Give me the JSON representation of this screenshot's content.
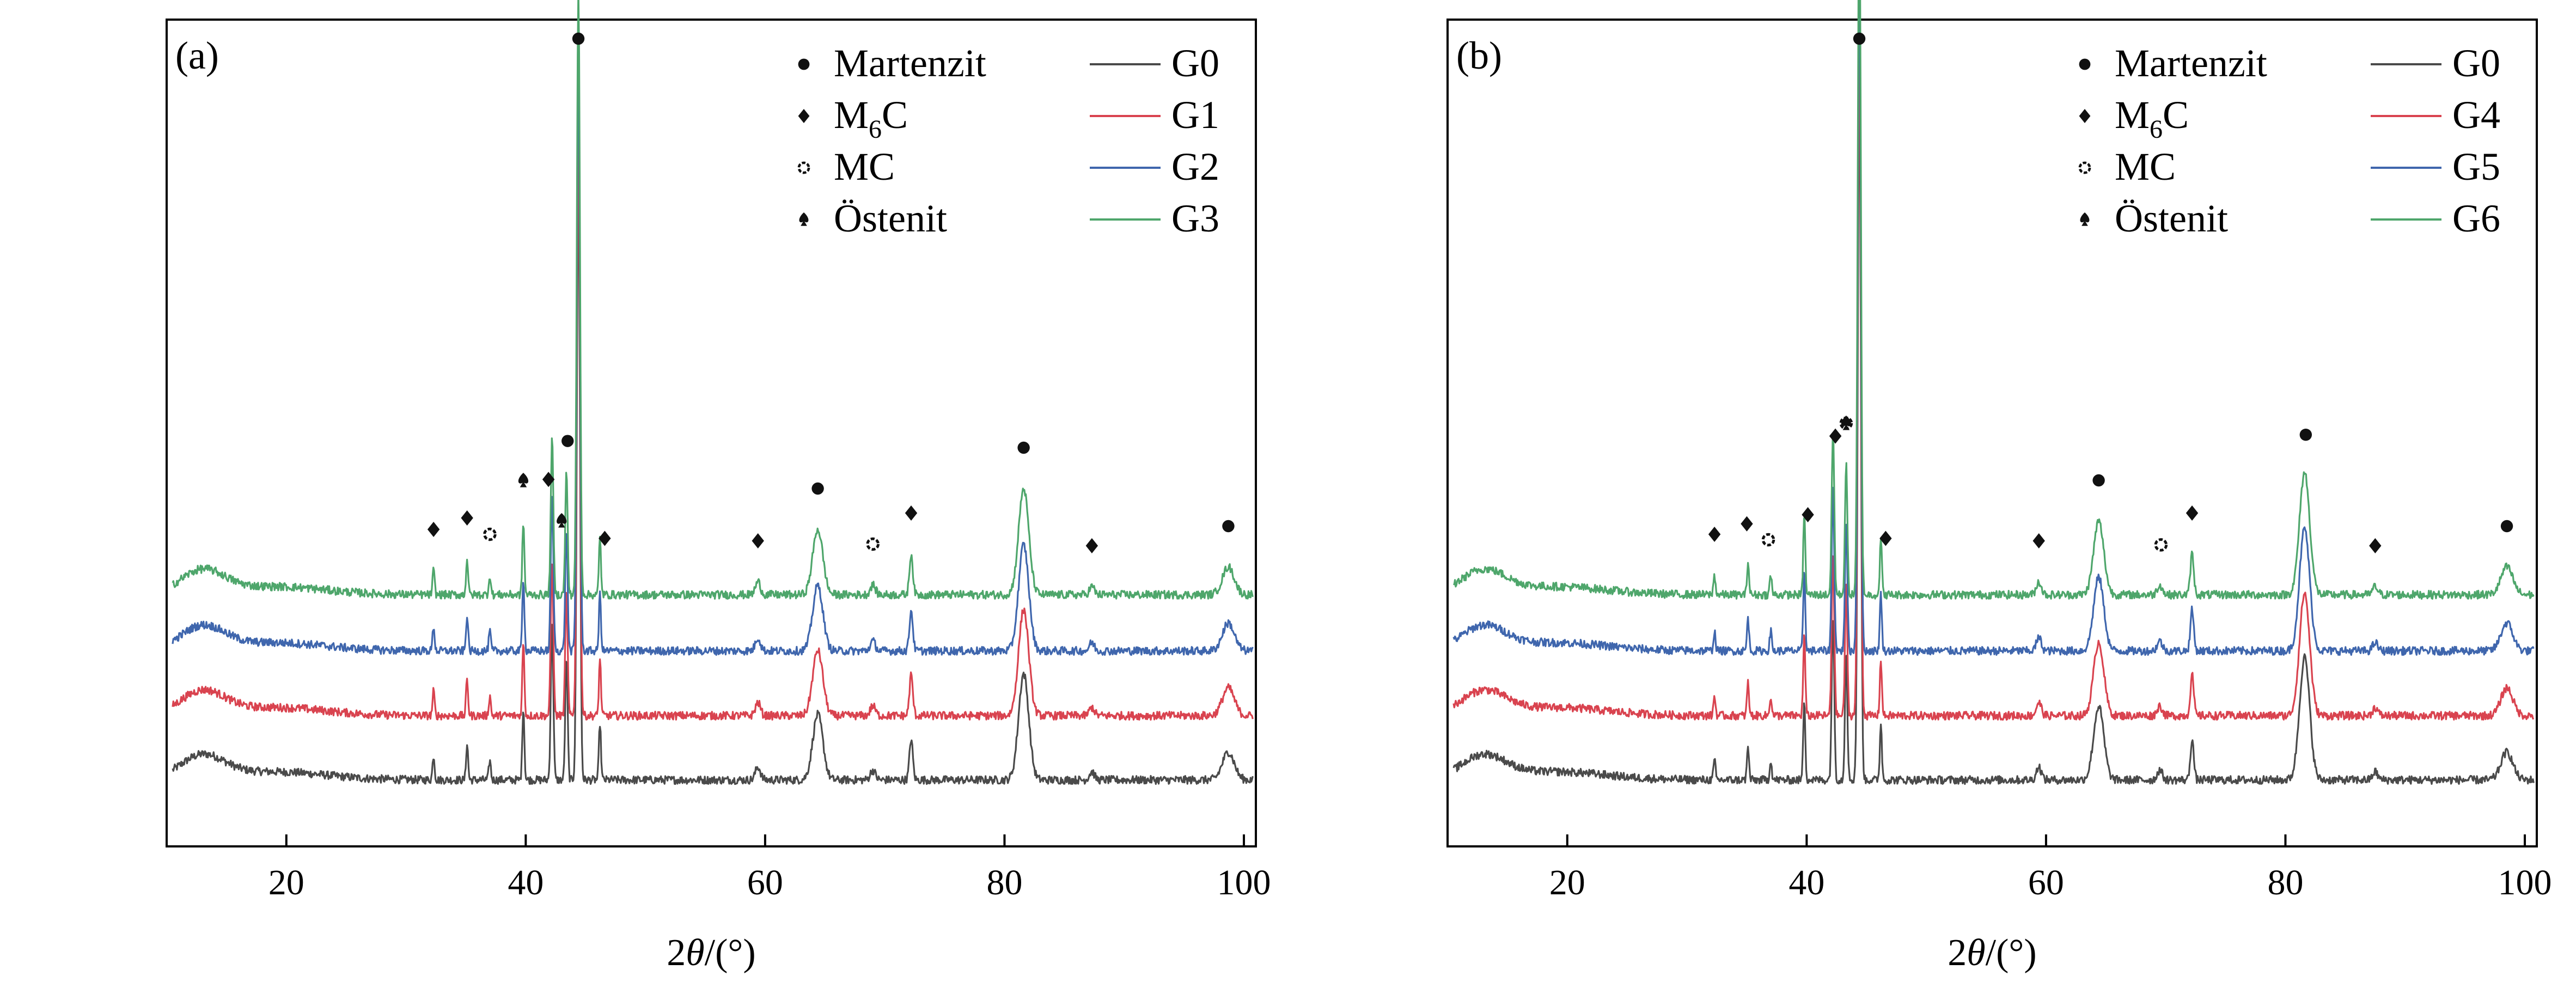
{
  "chart_data": [
    {
      "type": "line",
      "panel_label": "(a)",
      "xlabel_prefix": "2",
      "xlabel_var": "θ",
      "xlabel_unit": "/(°)",
      "xlim": [
        10,
        101
      ],
      "xticks": [
        20,
        40,
        60,
        80,
        100
      ],
      "ylabel": "",
      "y_ticks_shown": false,
      "grid": false,
      "legend_location": "top-right",
      "series": [
        {
          "name": "G0",
          "color": "#4a4a4a",
          "offset": 0
        },
        {
          "name": "G1",
          "color": "#d9434f",
          "offset": 1
        },
        {
          "name": "G2",
          "color": "#3f66ad",
          "offset": 2
        },
        {
          "name": "G3",
          "color": "#4ea66b",
          "offset": 3
        }
      ],
      "peaks": [
        {
          "pos": 32.3,
          "height": 0.15,
          "width": 0.12
        },
        {
          "pos": 35.1,
          "height": 0.22,
          "width": 0.12
        },
        {
          "pos": 37.0,
          "height": 0.12,
          "width": 0.12
        },
        {
          "pos": 39.8,
          "height": 0.45,
          "width": 0.12
        },
        {
          "pos": 42.2,
          "height": 0.95,
          "width": 0.15
        },
        {
          "pos": 43.4,
          "height": 0.75,
          "width": 0.14
        },
        {
          "pos": 44.4,
          "height": 3.7,
          "width": 0.18
        },
        {
          "pos": 46.2,
          "height": 0.35,
          "width": 0.12
        },
        {
          "pos": 59.4,
          "height": 0.08,
          "width": 0.3
        },
        {
          "pos": 64.4,
          "height": 0.4,
          "width": 0.6
        },
        {
          "pos": 69.0,
          "height": 0.06,
          "width": 0.3
        },
        {
          "pos": 72.2,
          "height": 0.25,
          "width": 0.2
        },
        {
          "pos": 81.6,
          "height": 0.65,
          "width": 0.6
        },
        {
          "pos": 87.3,
          "height": 0.05,
          "width": 0.3
        },
        {
          "pos": 98.7,
          "height": 0.17,
          "width": 0.7
        }
      ],
      "phase_markers": [
        {
          "phase": "M6C",
          "x": 32.3
        },
        {
          "phase": "M6C",
          "x": 35.1
        },
        {
          "phase": "MC",
          "x": 37.0
        },
        {
          "phase": "Östenit",
          "x": 39.8
        },
        {
          "phase": "M6C",
          "x": 41.9
        },
        {
          "phase": "Östenit",
          "x": 43.0
        },
        {
          "phase": "Martenzit",
          "x": 43.5
        },
        {
          "phase": "Martenzit",
          "x": 44.4
        },
        {
          "phase": "M6C",
          "x": 46.6
        },
        {
          "phase": "M6C",
          "x": 59.4
        },
        {
          "phase": "Martenzit",
          "x": 64.4
        },
        {
          "phase": "MC",
          "x": 69.0
        },
        {
          "phase": "M6C",
          "x": 72.2
        },
        {
          "phase": "Martenzit",
          "x": 81.6
        },
        {
          "phase": "M6C",
          "x": 87.3
        },
        {
          "phase": "Martenzit",
          "x": 98.7
        }
      ]
    },
    {
      "type": "line",
      "panel_label": "(b)",
      "xlabel_prefix": "2",
      "xlabel_var": "θ",
      "xlabel_unit": "/(°)",
      "xlim": [
        10,
        101
      ],
      "xticks": [
        20,
        40,
        60,
        80,
        100
      ],
      "ylabel": "",
      "y_ticks_shown": false,
      "grid": false,
      "legend_location": "top-right",
      "series": [
        {
          "name": "G0",
          "color": "#4a4a4a",
          "offset": 0
        },
        {
          "name": "G4",
          "color": "#d9434f",
          "offset": 1
        },
        {
          "name": "G5",
          "color": "#3f66ad",
          "offset": 2
        },
        {
          "name": "G6",
          "color": "#4ea66b",
          "offset": 3
        }
      ],
      "peaks": [
        {
          "pos": 32.3,
          "height": 0.12,
          "width": 0.12
        },
        {
          "pos": 35.1,
          "height": 0.2,
          "width": 0.12
        },
        {
          "pos": 37.0,
          "height": 0.12,
          "width": 0.12
        },
        {
          "pos": 39.8,
          "height": 0.5,
          "width": 0.12
        },
        {
          "pos": 42.2,
          "height": 1.0,
          "width": 0.15
        },
        {
          "pos": 43.3,
          "height": 0.8,
          "width": 0.14
        },
        {
          "pos": 44.4,
          "height": 4.3,
          "width": 0.18
        },
        {
          "pos": 46.2,
          "height": 0.35,
          "width": 0.12
        },
        {
          "pos": 59.4,
          "height": 0.08,
          "width": 0.3
        },
        {
          "pos": 64.4,
          "height": 0.45,
          "width": 0.6
        },
        {
          "pos": 69.5,
          "height": 0.06,
          "width": 0.3
        },
        {
          "pos": 72.2,
          "height": 0.25,
          "width": 0.2
        },
        {
          "pos": 81.6,
          "height": 0.75,
          "width": 0.6
        },
        {
          "pos": 87.5,
          "height": 0.05,
          "width": 0.3
        },
        {
          "pos": 98.5,
          "height": 0.17,
          "width": 0.7
        }
      ],
      "phase_markers": [
        {
          "phase": "M6C",
          "x": 32.3
        },
        {
          "phase": "M6C",
          "x": 35.0
        },
        {
          "phase": "MC",
          "x": 36.8
        },
        {
          "phase": "M6C",
          "x": 40.1
        },
        {
          "phase": "M6C",
          "x": 42.4
        },
        {
          "phase": "Östenit",
          "x": 43.3
        },
        {
          "phase": "MC",
          "x": 43.3
        },
        {
          "phase": "Martenzit",
          "x": 44.4
        },
        {
          "phase": "M6C",
          "x": 46.6
        },
        {
          "phase": "M6C",
          "x": 59.4
        },
        {
          "phase": "Martenzit",
          "x": 64.4
        },
        {
          "phase": "MC",
          "x": 69.6
        },
        {
          "phase": "M6C",
          "x": 72.2
        },
        {
          "phase": "Martenzit",
          "x": 81.7
        },
        {
          "phase": "M6C",
          "x": 87.5
        },
        {
          "phase": "Martenzit",
          "x": 98.5
        }
      ]
    }
  ],
  "legend_phases": [
    {
      "key": "Martenzit",
      "label": "Martenzit",
      "marker": "dot"
    },
    {
      "key": "M6C",
      "label_main": "M",
      "label_sub": "6",
      "label_end": "C",
      "marker": "diamond"
    },
    {
      "key": "MC",
      "label": "MC",
      "marker": "ring"
    },
    {
      "key": "Östenit",
      "label": "Östenit",
      "marker": "spade"
    }
  ]
}
